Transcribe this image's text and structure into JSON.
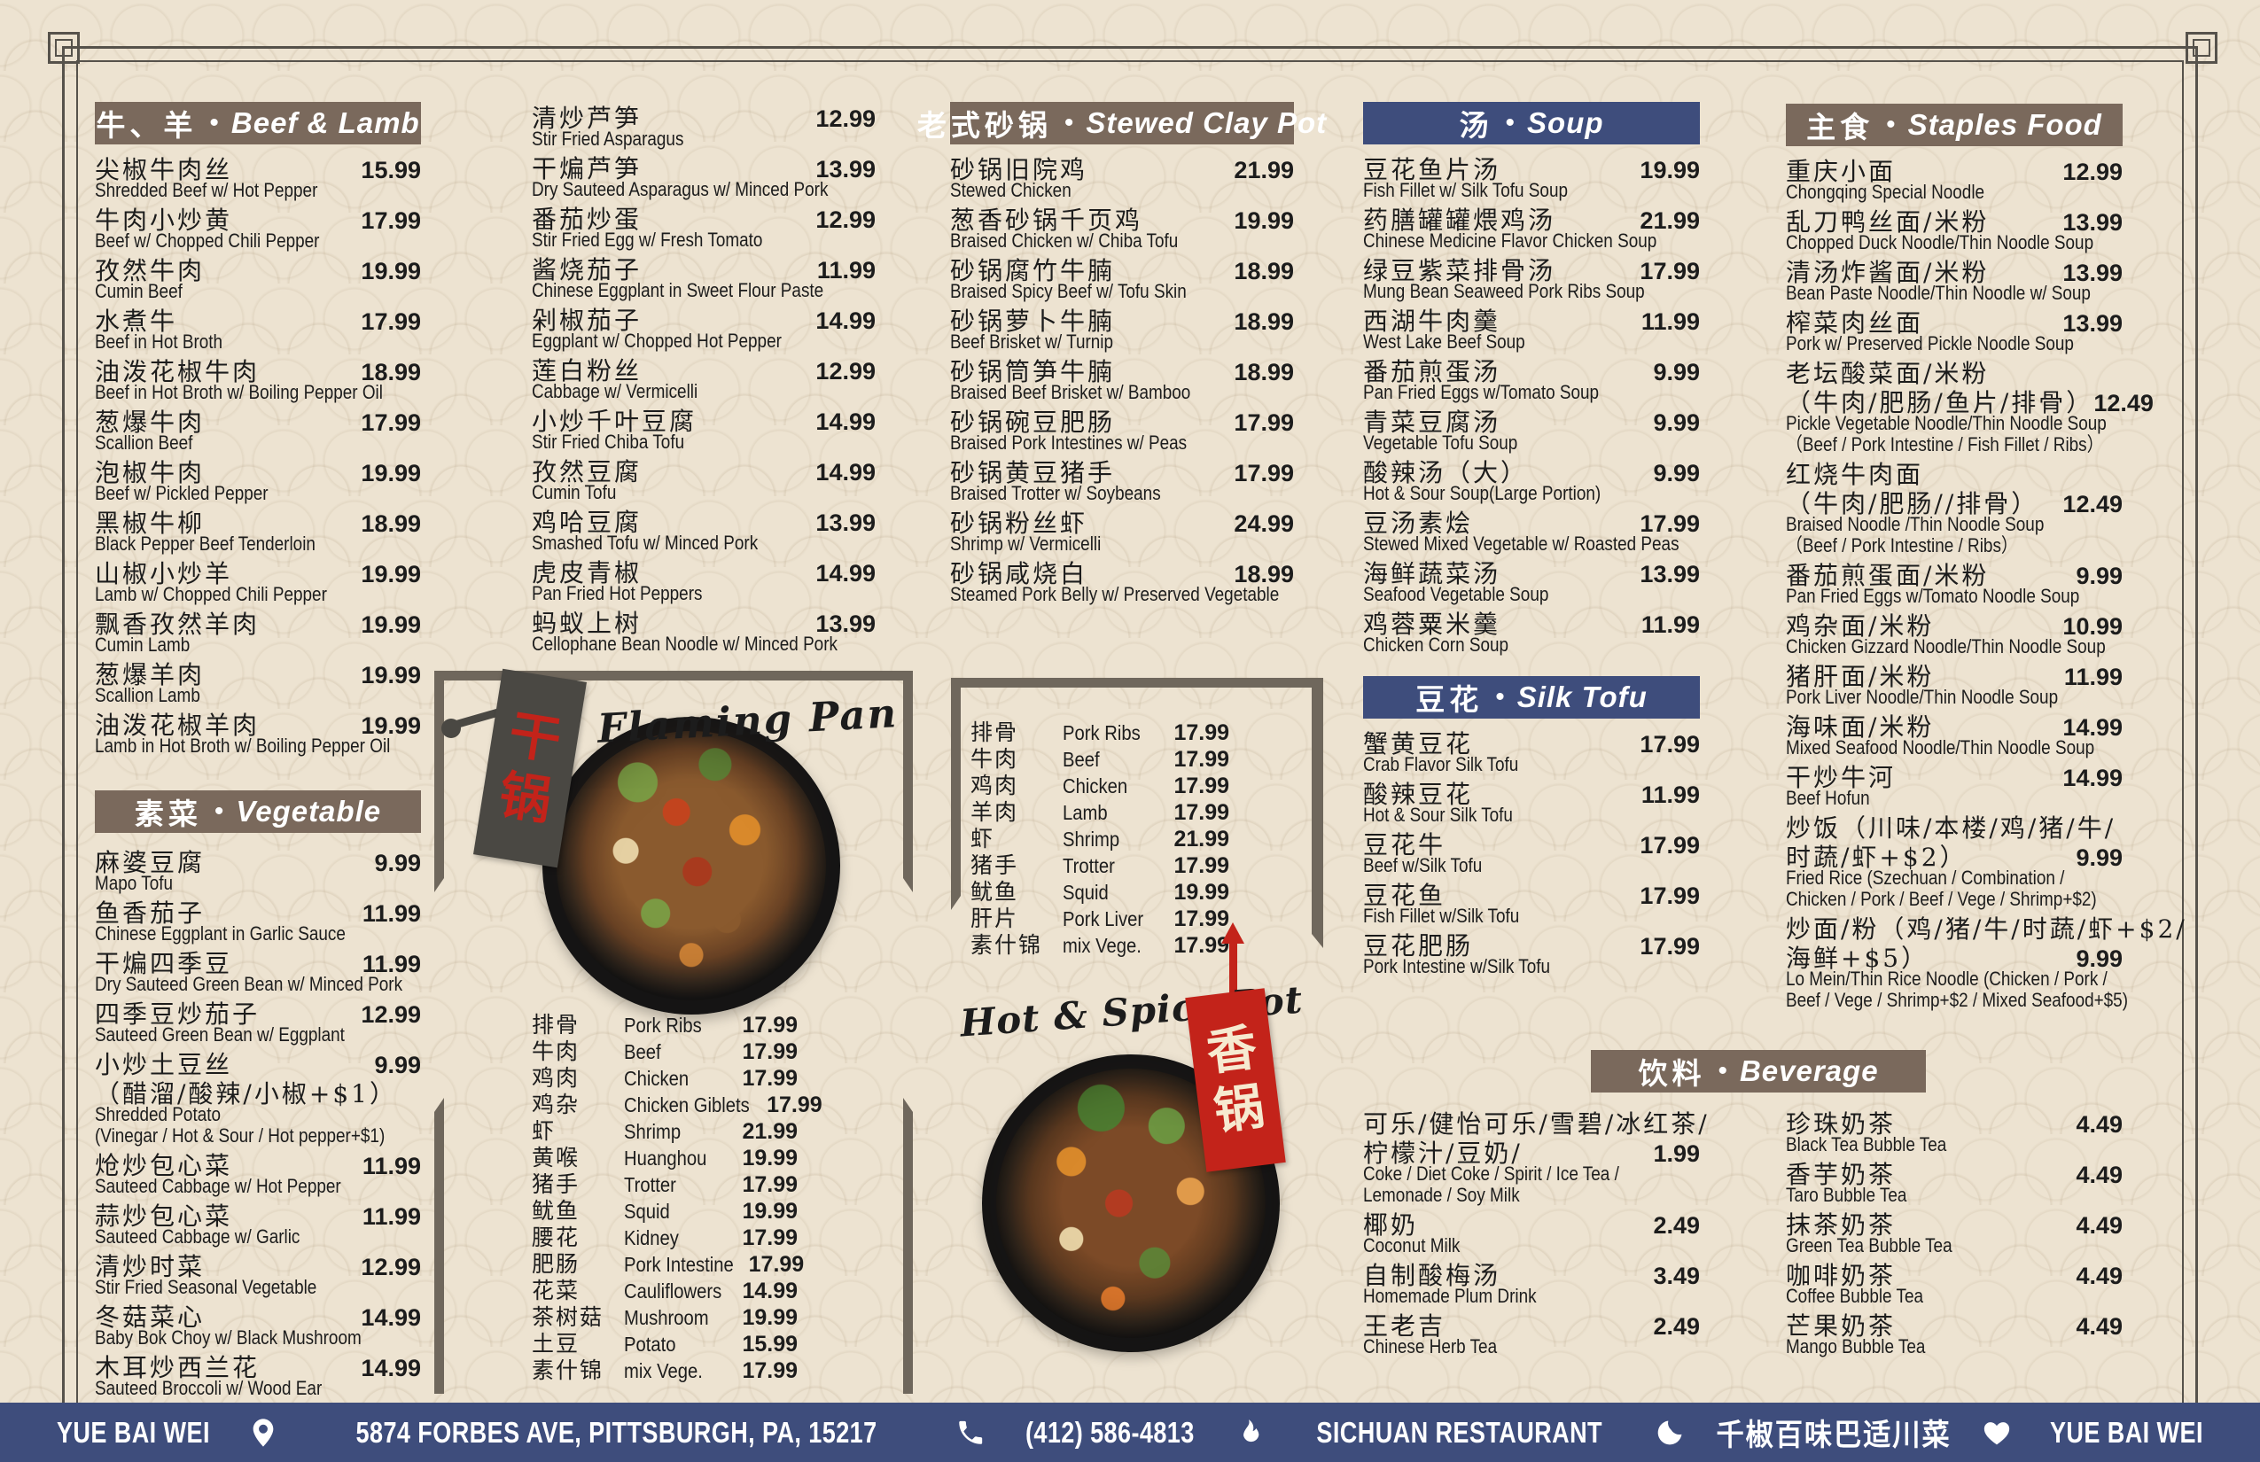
{
  "separator": "•",
  "colors": {
    "background_cream": "#ede3d1",
    "header_brown": "#7a695c",
    "header_navy": "#3e4d7c",
    "footer_navy": "#3e4d7c",
    "ink": "#1c1c1c",
    "flag_dark_gray": "#4a4843",
    "flag_red": "#c3231a",
    "frame_line": "#56524b"
  },
  "sections": {
    "beef_lamb": {
      "title_zh": "牛、羊",
      "title_en": "Beef & Lamb",
      "items": [
        {
          "zh": "尖椒牛肉丝",
          "price": "15.99",
          "en": "Shredded Beef w/ Hot Pepper"
        },
        {
          "zh": "牛肉小炒黄",
          "price": "17.99",
          "en": "Beef w/ Chopped Chili Pepper"
        },
        {
          "zh": "孜然牛肉",
          "price": "19.99",
          "en": "Cumin Beef"
        },
        {
          "zh": "水煮牛",
          "price": "17.99",
          "en": "Beef in Hot Broth"
        },
        {
          "zh": "油泼花椒牛肉",
          "price": "18.99",
          "en": "Beef in Hot Broth w/ Boiling Pepper Oil"
        },
        {
          "zh": "葱爆牛肉",
          "price": "17.99",
          "en": "Scallion Beef"
        },
        {
          "zh": "泡椒牛肉",
          "price": "19.99",
          "en": "Beef w/ Pickled Pepper"
        },
        {
          "zh": "黑椒牛柳",
          "price": "18.99",
          "en": "Black Pepper Beef Tenderloin"
        },
        {
          "zh": "山椒小炒羊",
          "price": "19.99",
          "en": "Lamb w/ Chopped Chili Pepper"
        },
        {
          "zh": "飘香孜然羊肉",
          "price": "19.99",
          "en": "Cumin Lamb"
        },
        {
          "zh": "葱爆羊肉",
          "price": "19.99",
          "en": "Scallion Lamb"
        },
        {
          "zh": "油泼花椒羊肉",
          "price": "19.99",
          "en": "Lamb in Hot Broth w/ Boiling Pepper Oil"
        }
      ]
    },
    "vegetable": {
      "title_zh": "素菜",
      "title_en": "Vegetable",
      "items": [
        {
          "zh": "麻婆豆腐",
          "price": "9.99",
          "en": "Mapo Tofu"
        },
        {
          "zh": "鱼香茄子",
          "price": "11.99",
          "en": "Chinese Eggplant in Garlic Sauce"
        },
        {
          "zh": "干煸四季豆",
          "price": "11.99",
          "en": "Dry Sauteed Green Bean w/ Minced Pork"
        },
        {
          "zh": "四季豆炒茄子",
          "price": "12.99",
          "en": "Sauteed Green Bean w/ Eggplant"
        },
        {
          "zh": "小炒土豆丝",
          "price": "9.99",
          "zh2": "（醋溜/酸辣/小椒+$1）",
          "en": "Shredded Potato",
          "en2": "(Vinegar / Hot & Sour / Hot pepper+$1)"
        },
        {
          "zh": "炝炒包心菜",
          "price": "11.99",
          "en": "Sauteed Cabbage w/ Hot Pepper"
        },
        {
          "zh": "蒜炒包心菜",
          "price": "11.99",
          "en": "Sauteed Cabbage w/ Garlic"
        },
        {
          "zh": "清炒时菜",
          "price": "12.99",
          "en": "Stir Fried Seasonal Vegetable"
        },
        {
          "zh": "冬菇菜心",
          "price": "14.99",
          "en": "Baby Bok Choy w/ Black Mushroom"
        },
        {
          "zh": "木耳炒西兰花",
          "price": "14.99",
          "en": "Sauteed Broccoli w/ Wood Ear"
        }
      ],
      "items_cont": [
        {
          "zh": "清炒芦笋",
          "price": "12.99",
          "en": "Stir Fried Asparagus"
        },
        {
          "zh": "干煸芦笋",
          "price": "13.99",
          "en": "Dry Sauteed Asparagus w/ Minced Pork"
        },
        {
          "zh": "番茄炒蛋",
          "price": "12.99",
          "en": "Stir Fried Egg w/ Fresh Tomato"
        },
        {
          "zh": "酱烧茄子",
          "price": "11.99",
          "en": "Chinese Eggplant in Sweet Flour Paste"
        },
        {
          "zh": "剁椒茄子",
          "price": "14.99",
          "en": "Eggplant w/ Chopped Hot Pepper"
        },
        {
          "zh": "莲白粉丝",
          "price": "12.99",
          "en": "Cabbage w/ Vermicelli"
        },
        {
          "zh": "小炒千叶豆腐",
          "price": "14.99",
          "en": "Stir Fried Chiba Tofu"
        },
        {
          "zh": "孜然豆腐",
          "price": "14.99",
          "en": "Cumin Tofu"
        },
        {
          "zh": "鸡哈豆腐",
          "price": "13.99",
          "en": "Smashed Tofu w/ Minced Pork"
        },
        {
          "zh": "虎皮青椒",
          "price": "14.99",
          "en": "Pan Fried Hot Peppers"
        },
        {
          "zh": "蚂蚁上树",
          "price": "13.99",
          "en": "Cellophane Bean Noodle w/ Minced Pork"
        }
      ]
    },
    "clay_pot": {
      "title_zh": "老式砂锅",
      "title_en": "Stewed Clay Pot",
      "items": [
        {
          "zh": "砂锅旧院鸡",
          "price": "21.99",
          "en": "Stewed Chicken"
        },
        {
          "zh": "葱香砂锅千页鸡",
          "price": "19.99",
          "en": "Braised Chicken w/ Chiba Tofu"
        },
        {
          "zh": "砂锅腐竹牛腩",
          "price": "18.99",
          "en": "Braised Spicy Beef w/ Tofu Skin"
        },
        {
          "zh": "砂锅萝卜牛腩",
          "price": "18.99",
          "en": "Beef Brisket w/ Turnip"
        },
        {
          "zh": "砂锅筒笋牛腩",
          "price": "18.99",
          "en": "Braised Beef Brisket w/ Bamboo"
        },
        {
          "zh": "砂锅碗豆肥肠",
          "price": "17.99",
          "en": "Braised Pork Intestines w/ Peas"
        },
        {
          "zh": "砂锅黄豆猪手",
          "price": "17.99",
          "en": "Braised Trotter w/ Soybeans"
        },
        {
          "zh": "砂锅粉丝虾",
          "price": "24.99",
          "en": "Shrimp w/ Vermicelli"
        },
        {
          "zh": "砂锅咸烧白",
          "price": "18.99",
          "en": "Steamed Pork Belly w/ Preserved Vegetable"
        }
      ]
    },
    "flaming_pan": {
      "script_label": "Flaming Pan",
      "flag_chars": "干锅",
      "items": [
        {
          "zh": "排骨",
          "en": "Pork Ribs",
          "price": "17.99"
        },
        {
          "zh": "牛肉",
          "en": "Beef",
          "price": "17.99"
        },
        {
          "zh": "鸡肉",
          "en": "Chicken",
          "price": "17.99"
        },
        {
          "zh": "鸡杂",
          "en": "Chicken Giblets",
          "price": "17.99"
        },
        {
          "zh": "虾",
          "en": "Shrimp",
          "price": "21.99"
        },
        {
          "zh": "黄喉",
          "en": "Huanghou",
          "price": "19.99"
        },
        {
          "zh": "猪手",
          "en": "Trotter",
          "price": "17.99"
        },
        {
          "zh": "鱿鱼",
          "en": "Squid",
          "price": "19.99"
        },
        {
          "zh": "腰花",
          "en": "Kidney",
          "price": "17.99"
        },
        {
          "zh": "肥肠",
          "en": "Pork Intestine",
          "price": "17.99"
        },
        {
          "zh": "花菜",
          "en": "Cauliflowers",
          "price": "14.99"
        },
        {
          "zh": "茶树菇",
          "en": "Mushroom",
          "price": "19.99"
        },
        {
          "zh": "土豆",
          "en": "Potato",
          "price": "15.99"
        },
        {
          "zh": "素什锦",
          "en": "mix Vege.",
          "price": "17.99"
        }
      ]
    },
    "spicy_pot": {
      "script_label": "Hot & Spicy Pot",
      "flag_chars": "香锅",
      "items": [
        {
          "zh": "排骨",
          "en": "Pork Ribs",
          "price": "17.99"
        },
        {
          "zh": "牛肉",
          "en": "Beef",
          "price": "17.99"
        },
        {
          "zh": "鸡肉",
          "en": "Chicken",
          "price": "17.99"
        },
        {
          "zh": "羊肉",
          "en": "Lamb",
          "price": "17.99"
        },
        {
          "zh": "虾",
          "en": "Shrimp",
          "price": "21.99"
        },
        {
          "zh": "猪手",
          "en": "Trotter",
          "price": "17.99"
        },
        {
          "zh": "鱿鱼",
          "en": "Squid",
          "price": "19.99"
        },
        {
          "zh": "肝片",
          "en": "Pork Liver",
          "price": "17.99"
        },
        {
          "zh": "素什锦",
          "en": "mix Vege.",
          "price": "17.99"
        }
      ]
    },
    "soup": {
      "title_zh": "汤",
      "title_en": "Soup",
      "items": [
        {
          "zh": "豆花鱼片汤",
          "price": "19.99",
          "en": "Fish Fillet w/ Silk Tofu Soup"
        },
        {
          "zh": "药膳罐罐煨鸡汤",
          "price": "21.99",
          "en": "Chinese Medicine Flavor Chicken Soup"
        },
        {
          "zh": "绿豆紫菜排骨汤",
          "price": "17.99",
          "en": "Mung Bean Seaweed Pork Ribs Soup"
        },
        {
          "zh": "西湖牛肉羹",
          "price": "11.99",
          "en": "West Lake Beef Soup"
        },
        {
          "zh": "番茄煎蛋汤",
          "price": "9.99",
          "en": "Pan Fried Eggs w/Tomato Soup"
        },
        {
          "zh": "青菜豆腐汤",
          "price": "9.99",
          "en": "Vegetable Tofu Soup"
        },
        {
          "zh": "酸辣汤（大）",
          "price": "9.99",
          "en": "Hot & Sour Soup(Large Portion)"
        },
        {
          "zh": "豆汤素烩",
          "price": "17.99",
          "en": "Stewed Mixed Vegetable w/ Roasted Peas"
        },
        {
          "zh": "海鲜蔬菜汤",
          "price": "13.99",
          "en": "Seafood Vegetable Soup"
        },
        {
          "zh": "鸡蓉粟米羹",
          "price": "11.99",
          "en": "Chicken Corn Soup"
        }
      ]
    },
    "silk_tofu": {
      "title_zh": "豆花",
      "title_en": "Silk Tofu",
      "items": [
        {
          "zh": "蟹黄豆花",
          "price": "17.99",
          "en": "Crab Flavor Silk Tofu"
        },
        {
          "zh": "酸辣豆花",
          "price": "11.99",
          "en": "Hot & Sour Silk Tofu"
        },
        {
          "zh": "豆花牛",
          "price": "17.99",
          "en": "Beef w/Silk Tofu"
        },
        {
          "zh": "豆花鱼",
          "price": "17.99",
          "en": "Fish Fillet w/Silk Tofu"
        },
        {
          "zh": "豆花肥肠",
          "price": "17.99",
          "en": "Pork Intestine w/Silk Tofu"
        }
      ]
    },
    "staples": {
      "title_zh": "主食",
      "title_en": "Staples Food",
      "items": [
        {
          "zh": "重庆小面",
          "price": "12.99",
          "en": "Chongqing Special Noodle"
        },
        {
          "zh": "乱刀鸭丝面/米粉",
          "price": "13.99",
          "en": "Chopped Duck Noodle/Thin Noodle Soup"
        },
        {
          "zh": "清汤炸酱面/米粉",
          "price": "13.99",
          "en": "Bean Paste Noodle/Thin Noodle w/ Soup"
        },
        {
          "zh": "榨菜肉丝面",
          "price": "13.99",
          "en": "Pork w/ Preserved Pickle Noodle Soup"
        },
        {
          "zh": "老坛酸菜面/米粉",
          "zh2": "（牛肉/肥肠/鱼片/排骨）",
          "price": "12.49",
          "price_line": 2,
          "en": "Pickle Vegetable Noodle/Thin Noodle Soup",
          "en2": "（Beef / Pork Intestine / Fish Fillet / Ribs）"
        },
        {
          "zh": "红烧牛肉面",
          "zh2": "（牛肉/肥肠//排骨）",
          "price": "12.49",
          "price_line": 2,
          "en": "Braised Noodle /Thin Noodle Soup",
          "en2": "（Beef / Pork Intestine / Ribs）"
        },
        {
          "zh": "番茄煎蛋面/米粉",
          "price": "9.99",
          "en": "Pan Fried Eggs w/Tomato Noodle Soup"
        },
        {
          "zh": "鸡杂面/米粉",
          "price": "10.99",
          "en": "Chicken Gizzard Noodle/Thin Noodle Soup"
        },
        {
          "zh": "猪肝面/米粉",
          "price": "11.99",
          "en": "Pork Liver Noodle/Thin Noodle Soup"
        },
        {
          "zh": "海味面/米粉",
          "price": "14.99",
          "en": "Mixed Seafood Noodle/Thin Noodle Soup"
        },
        {
          "zh": "干炒牛河",
          "price": "14.99",
          "en": "Beef Hofun"
        },
        {
          "zh": "炒饭（川味/本楼/鸡/猪/牛/",
          "zh2": "时蔬/虾+$2）",
          "price": "9.99",
          "price_line": 2,
          "en": "Fried Rice (Szechuan / Combination /",
          "en2": "Chicken / Pork / Beef / Vege / Shrimp+$2)"
        },
        {
          "zh": "炒面/粉（鸡/猪/牛/时蔬/虾+$2/",
          "zh2": "海鲜+$5）",
          "price": "9.99",
          "price_line": 2,
          "en": "Lo Mein/Thin Rice Noodle (Chicken / Pork /",
          "en2": "Beef / Vege / Shrimp+$2 / Mixed Seafood+$5)"
        }
      ]
    },
    "beverage": {
      "title_zh": "饮料",
      "title_en": "Beverage",
      "items_left": [
        {
          "zh": "可乐/健怡可乐/雪碧/冰红茶/",
          "zh2": "柠檬汁/豆奶/",
          "price": "1.99",
          "price_line": 2,
          "en": "Coke / Diet Coke / Spirit / Ice Tea /",
          "en2": "Lemonade / Soy Milk"
        },
        {
          "zh": "椰奶",
          "price": "2.49",
          "en": "Coconut Milk"
        },
        {
          "zh": "自制酸梅汤",
          "price": "3.49",
          "en": "Homemade Plum Drink"
        },
        {
          "zh": "王老吉",
          "price": "2.49",
          "en": "Chinese Herb Tea"
        }
      ],
      "items_right": [
        {
          "zh": "珍珠奶茶",
          "price": "4.49",
          "en": "Black Tea Bubble Tea"
        },
        {
          "zh": "香芋奶茶",
          "price": "4.49",
          "en": "Taro Bubble Tea"
        },
        {
          "zh": "抹茶奶茶",
          "price": "4.49",
          "en": "Green Tea Bubble Tea"
        },
        {
          "zh": "咖啡奶茶",
          "price": "4.49",
          "en": "Coffee Bubble Tea"
        },
        {
          "zh": "芒果奶茶",
          "price": "4.49",
          "en": "Mango Bubble Tea"
        }
      ]
    }
  },
  "footer": {
    "brand_left": "YUE BAI WEI",
    "address": "5874 FORBES AVE, PITTSBURGH, PA, 15217",
    "phone": "(412) 586-4813",
    "restaurant_type": "SICHUAN RESTAURANT",
    "tagline_zh": "千椒百味巴适川菜",
    "brand_right": "YUE BAI WEI",
    "icons": [
      "location-pin",
      "phone",
      "flame",
      "fortune-cookie",
      "heart"
    ]
  }
}
